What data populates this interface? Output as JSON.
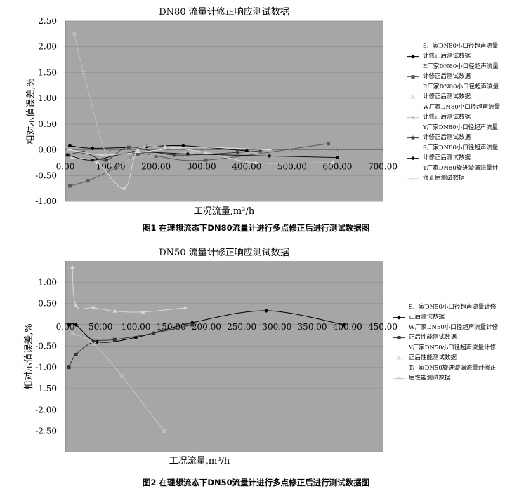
{
  "chart_data": [
    {
      "type": "line",
      "title": "DN80 流量计修正响应测试数据",
      "xlabel": "工况流量,m³/h",
      "ylabel": "相对示值误差,%",
      "xlim": [
        0,
        700
      ],
      "ylim": [
        -1.0,
        2.5
      ],
      "x_ticks": [
        "0.00",
        "100.00",
        "200.00",
        "300.00",
        "400.00",
        "500.00",
        "600.00",
        "700.00"
      ],
      "y_ticks": [
        "-1.00",
        "-0.50",
        "0.00",
        "0.50",
        "1.00",
        "1.50",
        "2.00",
        "2.50"
      ],
      "background": "#a6a6a6",
      "grid": true,
      "legend_position": "right",
      "series": [
        {
          "name": "S厂家DN80小口径超声流量计修正后测试数据",
          "color": "#000000",
          "marker": "diamond",
          "x": [
            10,
            60,
            180,
            260,
            400
          ],
          "y": [
            0.08,
            0.03,
            0.06,
            0.08,
            -0.02
          ]
        },
        {
          "name": "E厂家DN80小口径超声流量计修正后测试数据",
          "color": "#595959",
          "marker": "square",
          "x": [
            10,
            50,
            110,
            160,
            200,
            310,
            580
          ],
          "y": [
            -0.7,
            -0.6,
            -0.35,
            -0.08,
            -0.12,
            -0.2,
            0.12
          ]
        },
        {
          "name": "R厂家DN80小口径超声流量计修正后测试数据",
          "color": "#d9d9d9",
          "marker": "triangle",
          "x": [
            15,
            70,
            130,
            160,
            220,
            310,
            420,
            590
          ],
          "y": [
            -0.15,
            -0.25,
            -0.75,
            0.0,
            0.05,
            -0.05,
            -0.25,
            -0.25
          ]
        },
        {
          "name": "W厂家DN80小口径超声流量计修正后测试数据",
          "color": "#bfbfbf",
          "marker": "x",
          "x": [
            20,
            40,
            100,
            150,
            280,
            420
          ],
          "y": [
            2.25,
            1.5,
            -0.3,
            -0.15,
            -0.05,
            -0.05
          ]
        },
        {
          "name": "Y厂家DN80小口径超声流量计修正后测试数据",
          "color": "#3a3a3a",
          "marker": "star",
          "x": [
            5,
            40,
            90,
            140,
            240,
            380,
            430
          ],
          "y": [
            -0.1,
            -0.05,
            -0.2,
            0.05,
            -0.1,
            -0.05,
            -0.02
          ]
        },
        {
          "name": "S厂家DN80小口径超声流量计修正后测试数据",
          "color": "#111111",
          "marker": "circle",
          "x": [
            5,
            60,
            150,
            270,
            450,
            600
          ],
          "y": [
            -0.1,
            -0.2,
            -0.05,
            -0.08,
            -0.12,
            -0.15
          ]
        },
        {
          "name": "T厂家DN80旋进漩涡流量计修正后测试数据",
          "color": "#e0e0e0",
          "marker": "dash",
          "x": [
            10,
            80,
            160,
            280,
            450
          ],
          "y": [
            0.0,
            -0.1,
            -0.05,
            0.05,
            0.0
          ]
        }
      ],
      "caption": "图1  在理想流态下DN80流量计进行多点修正后进行测试数据图"
    },
    {
      "type": "line",
      "title": "DN50 流量计修正响应测试数据",
      "xlabel": "工况流量,m³/h",
      "ylabel": "相对示值误差,%",
      "xlim": [
        0,
        450
      ],
      "ylim": [
        -3.0,
        1.5
      ],
      "x_ticks": [
        "0.00",
        "50.00",
        "100.00",
        "150.00",
        "200.00",
        "250.00",
        "300.00",
        "350.00",
        "400.00",
        "450.00"
      ],
      "y_ticks": [
        "-2.50",
        "-2.00",
        "-1.50",
        "-1.00",
        "-0.50",
        "0.50",
        "1.00"
      ],
      "background": "#a6a6a6",
      "grid": true,
      "legend_position": "right",
      "series": [
        {
          "name": "S厂家DN50小口径超声流量计修正后测试数据",
          "color": "#000000",
          "marker": "diamond",
          "x": [
            5,
            15,
            45,
            100,
            180,
            285,
            395
          ],
          "y": [
            0.0,
            0.0,
            -0.4,
            -0.3,
            0.05,
            0.33,
            0.0
          ]
        },
        {
          "name": "W厂家DN50小口径超声流量计修正后性能测试数据",
          "color": "#333333",
          "marker": "square",
          "x": [
            5,
            15,
            40,
            70,
            125,
            180
          ],
          "y": [
            -1.0,
            -0.7,
            -0.4,
            -0.35,
            -0.2,
            0.0
          ]
        },
        {
          "name": "Y厂家DN50小口径超声流量计修正后性能测试数据",
          "color": "#d9d9d9",
          "marker": "triangle",
          "x": [
            10,
            15,
            40,
            70,
            110,
            170
          ],
          "y": [
            1.35,
            0.45,
            0.4,
            0.32,
            0.3,
            0.4
          ]
        },
        {
          "name": "T厂家DN50旋进漩涡流量计修正后性能测试数据",
          "color": "#c8c8c8",
          "marker": "x",
          "x": [
            10,
            40,
            80,
            140
          ],
          "y": [
            -0.2,
            -0.45,
            -1.2,
            -2.5
          ]
        }
      ],
      "caption": "图2  在理想流态下DN50流量计进行多点修正后进行测试数据图"
    }
  ]
}
